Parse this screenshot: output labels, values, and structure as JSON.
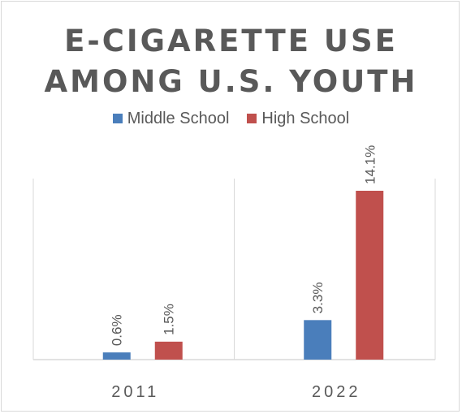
{
  "chart_data": {
    "type": "bar",
    "title": "E-CIGARETTE USE AMONG U.S. YOUTH",
    "title_lines": [
      "E-CIGARETTE USE",
      "AMONG U.S. YOUTH"
    ],
    "categories": [
      "2011",
      "2022"
    ],
    "series": [
      {
        "name": "Middle School",
        "values": [
          0.6,
          3.3
        ],
        "labels": [
          "0.6%",
          "3.3%"
        ],
        "color": "#4a7ebb"
      },
      {
        "name": "High School",
        "values": [
          1.5,
          14.1
        ],
        "labels": [
          "1.5%",
          "14.1%"
        ],
        "color": "#c0504d"
      }
    ],
    "xlabel": "",
    "ylabel": "",
    "ylim": [
      0,
      14.1
    ],
    "grid": false,
    "legend_position": "top"
  }
}
